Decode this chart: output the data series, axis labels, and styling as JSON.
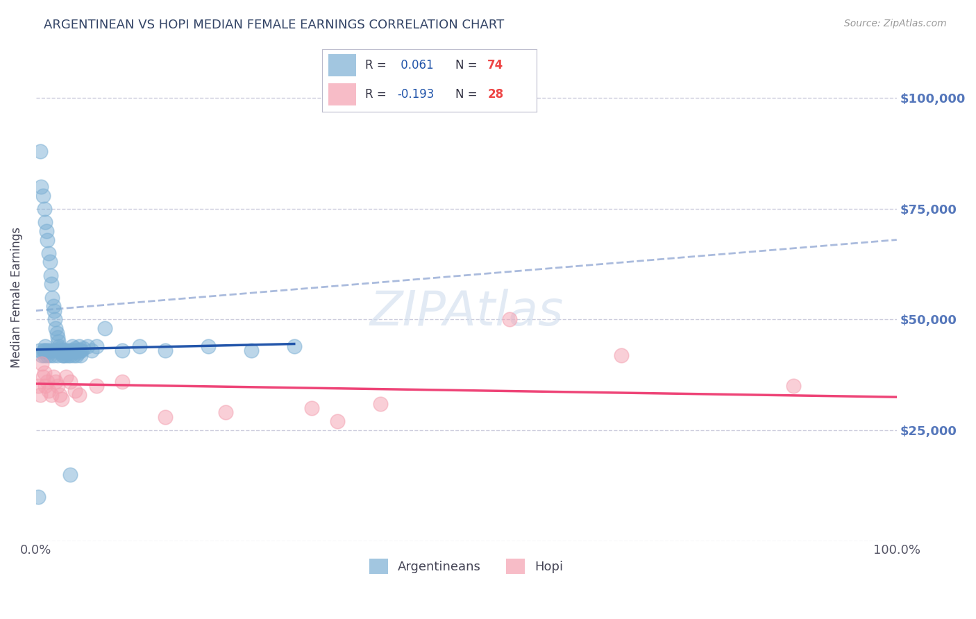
{
  "title": "ARGENTINEAN VS HOPI MEDIAN FEMALE EARNINGS CORRELATION CHART",
  "source": "Source: ZipAtlas.com",
  "ylabel": "Median Female Earnings",
  "watermark": "ZIPAtlas",
  "blue_R": 0.061,
  "blue_N": 74,
  "pink_R": -0.193,
  "pink_N": 28,
  "blue_color": "#7BAFD4",
  "pink_color": "#F4A0B0",
  "blue_line_color": "#2255AA",
  "pink_line_color": "#EE4477",
  "blue_dashed_color": "#AABBDD",
  "title_color": "#334466",
  "source_color": "#999999",
  "axis_label_color": "#5577BB",
  "legend_R_color": "#2255AA",
  "legend_N_color": "#EE4444",
  "blue_scatter_x": [
    0.3,
    0.5,
    0.6,
    0.8,
    1.0,
    1.1,
    1.2,
    1.3,
    1.5,
    1.6,
    1.7,
    1.8,
    1.9,
    2.0,
    2.1,
    2.2,
    2.3,
    2.4,
    2.5,
    2.6,
    2.7,
    2.8,
    2.9,
    3.0,
    3.1,
    3.2,
    3.3,
    3.4,
    3.5,
    3.6,
    3.7,
    3.8,
    3.9,
    4.0,
    4.1,
    4.2,
    4.3,
    4.4,
    4.5,
    4.6,
    4.7,
    4.8,
    4.9,
    5.0,
    5.1,
    5.2,
    5.3,
    5.5,
    6.0,
    6.5,
    7.0,
    8.0,
    10.0,
    12.0,
    15.0,
    20.0,
    25.0,
    30.0,
    0.4,
    0.7,
    0.9,
    1.0,
    1.0,
    1.1,
    1.2,
    1.3,
    1.5,
    1.6,
    1.8,
    2.0,
    2.2,
    2.5,
    3.0,
    4.0
  ],
  "blue_scatter_y": [
    10000,
    88000,
    80000,
    78000,
    75000,
    72000,
    70000,
    68000,
    65000,
    63000,
    60000,
    58000,
    55000,
    53000,
    52000,
    50000,
    48000,
    47000,
    46000,
    45000,
    44000,
    43500,
    43000,
    42500,
    42000,
    42000,
    43000,
    42000,
    43000,
    42500,
    42000,
    43000,
    42500,
    42000,
    43000,
    44000,
    43000,
    42000,
    43500,
    43000,
    42000,
    43000,
    42500,
    44000,
    43000,
    42000,
    43000,
    43500,
    44000,
    43000,
    44000,
    48000,
    43000,
    44000,
    43000,
    44000,
    43000,
    44000,
    43000,
    42000,
    43000,
    42000,
    43000,
    44000,
    43000,
    42000,
    43000,
    42000,
    43000,
    42000,
    43000,
    42000,
    43000,
    15000
  ],
  "pink_scatter_x": [
    0.3,
    0.5,
    0.7,
    0.8,
    1.0,
    1.1,
    1.3,
    1.5,
    1.8,
    2.0,
    2.3,
    2.5,
    2.8,
    3.0,
    3.5,
    4.0,
    4.5,
    5.0,
    7.0,
    10.0,
    15.0,
    22.0,
    32.0,
    35.0,
    40.0,
    55.0,
    68.0,
    88.0
  ],
  "pink_scatter_y": [
    35000,
    33000,
    40000,
    37000,
    38000,
    35000,
    36000,
    34000,
    33000,
    37000,
    36000,
    35000,
    33000,
    32000,
    37000,
    36000,
    34000,
    33000,
    35000,
    36000,
    28000,
    29000,
    30000,
    27000,
    31000,
    50000,
    42000,
    35000
  ],
  "xlim": [
    0,
    100
  ],
  "ylim": [
    0,
    110000
  ],
  "yticks": [
    0,
    25000,
    50000,
    75000,
    100000
  ],
  "ytick_labels": [
    "",
    "$25,000",
    "$50,000",
    "$75,000",
    "$100,000"
  ],
  "xtick_labels": [
    "0.0%",
    "100.0%"
  ],
  "grid_color": "#CCCCDD",
  "background_color": "#FFFFFF",
  "blue_trend_x0": 0.0,
  "blue_trend_x1": 30.0,
  "blue_trend_y0": 43200,
  "blue_trend_y1": 44500,
  "pink_trend_x0": 0.0,
  "pink_trend_x1": 100.0,
  "pink_trend_y0": 35500,
  "pink_trend_y1": 32500,
  "blue_dash_x0": 0.0,
  "blue_dash_x1": 100.0,
  "blue_dash_y0": 52000,
  "blue_dash_y1": 68000
}
